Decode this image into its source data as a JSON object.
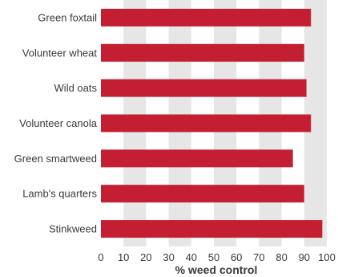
{
  "chart_data": {
    "type": "bar",
    "orientation": "horizontal",
    "categories": [
      "Green foxtail",
      "Volunteer wheat",
      "Wild oats",
      "Volunteer canola",
      "Green smartweed",
      "Lamb's quarters",
      "Stinkweed"
    ],
    "values": [
      93,
      90,
      91,
      93,
      85,
      90,
      98
    ],
    "xlabel": "% weed control",
    "xlim": [
      0,
      100
    ],
    "xticks": [
      "0",
      "10",
      "20",
      "30",
      "40",
      "50",
      "60",
      "70",
      "80",
      "90",
      "100"
    ],
    "grid": "alternating vertical bands",
    "colors": {
      "bar": "#c41e32",
      "band": "#e6e6e6"
    }
  }
}
